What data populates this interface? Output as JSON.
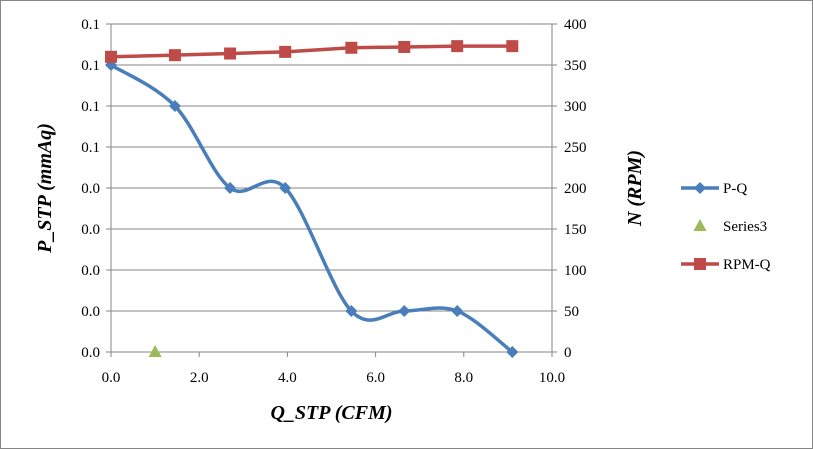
{
  "chart_data": {
    "type": "line",
    "xlabel": "Q_STP (CFM)",
    "ylabel": "P_STP (mmAq)",
    "y2label": "N (RPM)",
    "xlim": [
      0,
      10
    ],
    "ylim": [
      0,
      0.16
    ],
    "y2lim": [
      0,
      400
    ],
    "x_ticks": [
      "0.0",
      "2.0",
      "4.0",
      "6.0",
      "8.0",
      "10.0"
    ],
    "y_ticks": [
      "0.0",
      "0.0",
      "0.0",
      "0.0",
      "0.0",
      "0.1",
      "0.1",
      "0.1",
      "0.1"
    ],
    "y2_ticks": [
      "0",
      "50",
      "100",
      "150",
      "200",
      "250",
      "300",
      "350",
      "400"
    ],
    "grid": "horizontal major",
    "legend_position": "right",
    "series": [
      {
        "name": "P-Q",
        "axis": "left",
        "color": "#4a7ebb",
        "marker": "diamond",
        "smooth": true,
        "x": [
          0.0,
          1.45,
          2.7,
          3.95,
          5.45,
          6.65,
          7.85,
          9.1
        ],
        "y": [
          0.14,
          0.12,
          0.08,
          0.08,
          0.02,
          0.02,
          0.02,
          0.0
        ]
      },
      {
        "name": "Series3",
        "axis": "left",
        "color": "#9bbb59",
        "marker": "triangle",
        "smooth": false,
        "x": [
          1.0
        ],
        "y": [
          0.0
        ]
      },
      {
        "name": "RPM-Q",
        "axis": "right",
        "color": "#be4b48",
        "marker": "square",
        "smooth": false,
        "x": [
          0.0,
          1.45,
          2.7,
          3.95,
          5.45,
          6.65,
          7.85,
          9.1
        ],
        "y": [
          360,
          362,
          364,
          366,
          371,
          372,
          373,
          373
        ]
      }
    ]
  }
}
